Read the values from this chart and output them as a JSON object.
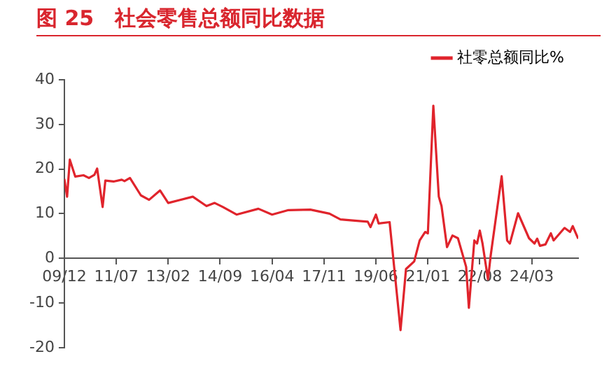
{
  "chart_data": {
    "type": "line",
    "title": "图 25　社会零售总额同比数据",
    "x": [
      "2009-12",
      "2010-01",
      "2010-02",
      "2010-04",
      "2010-07",
      "2010-09",
      "2010-11",
      "2010-12",
      "2011-02",
      "2011-03",
      "2011-06",
      "2011-09",
      "2011-10",
      "2011-12",
      "2012-04",
      "2012-07",
      "2012-11",
      "2013-02",
      "2013-11",
      "2014-04",
      "2014-07",
      "2014-10",
      "2015-03",
      "2015-11",
      "2016-04",
      "2016-10",
      "2017-06",
      "2018-01",
      "2018-05",
      "2018-11",
      "2019-03",
      "2019-04",
      "2019-06",
      "2019-07",
      "2019-11",
      "2020-03",
      "2020-05",
      "2020-08",
      "2020-10",
      "2020-12",
      "2021-01",
      "2021-03",
      "2021-05",
      "2021-06",
      "2021-08",
      "2021-10",
      "2021-12",
      "2022-03",
      "2022-04",
      "2022-06",
      "2022-07",
      "2022-08",
      "2022-09",
      "2022-11",
      "2022-12",
      "2023-04",
      "2023-06",
      "2023-07",
      "2023-10",
      "2024-02",
      "2024-04",
      "2024-05",
      "2024-06",
      "2024-08",
      "2024-10",
      "2024-11",
      "2025-03",
      "2025-05",
      "2025-06",
      "2025-08"
    ],
    "series": [
      {
        "name": "社零总额同比%",
        "color": "#e0242c",
        "values": [
          17.8,
          13.8,
          22.1,
          18.3,
          18.6,
          18.0,
          18.7,
          20.1,
          11.5,
          17.4,
          17.2,
          17.6,
          17.3,
          18.0,
          14.1,
          13.1,
          15.2,
          12.4,
          13.8,
          11.7,
          12.4,
          11.5,
          9.8,
          11.1,
          9.8,
          10.8,
          10.9,
          10.0,
          8.7,
          8.4,
          8.2,
          7.0,
          9.8,
          7.8,
          8.1,
          -16.1,
          -2.4,
          -0.7,
          4.0,
          5.9,
          5.6,
          34.2,
          13.8,
          11.7,
          2.5,
          5.1,
          4.5,
          -1.9,
          -11.1,
          4.0,
          3.3,
          6.2,
          3.3,
          -4.7,
          0.7,
          18.4,
          4.0,
          3.3,
          10.1,
          4.5,
          3.3,
          4.4,
          2.8,
          3.1,
          5.6,
          4.0,
          6.8,
          5.9,
          7.2,
          4.4
        ]
      }
    ],
    "xlim": [
      "2009-12",
      "2025-08"
    ],
    "xticks": [
      {
        "value": "2009-12",
        "label": "09/12"
      },
      {
        "value": "2011-07",
        "label": "11/07"
      },
      {
        "value": "2013-02",
        "label": "13/02"
      },
      {
        "value": "2014-09",
        "label": "14/09"
      },
      {
        "value": "2016-04",
        "label": "16/04"
      },
      {
        "value": "2017-11",
        "label": "17/11"
      },
      {
        "value": "2019-06",
        "label": "19/06"
      },
      {
        "value": "2021-01",
        "label": "21/01"
      },
      {
        "value": "2022-08",
        "label": "22/08"
      },
      {
        "value": "2024-03",
        "label": "24/03"
      }
    ],
    "ylim": [
      -20,
      40
    ],
    "yticks": [
      -20,
      -10,
      0,
      10,
      20,
      30,
      40
    ],
    "grid": false,
    "legend": "top right",
    "marker": "none",
    "line_style": "solid"
  }
}
